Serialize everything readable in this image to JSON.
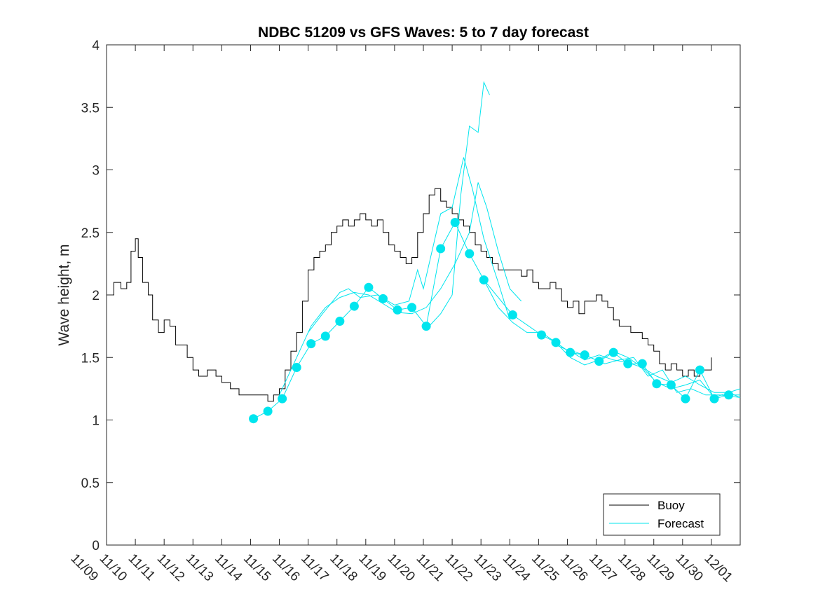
{
  "chart_data": {
    "type": "line",
    "title": "NDBC 51209 vs GFS Waves: 5 to 7 day forecast",
    "xlabel": "",
    "ylabel": "Wave height, m",
    "ylim": [
      0,
      4
    ],
    "yticks": [
      "0",
      "0.5",
      "1",
      "1.5",
      "2",
      "2.5",
      "3",
      "3.5",
      "4"
    ],
    "xlim": [
      0,
      22
    ],
    "xticks": [
      "11/09",
      "11/10",
      "11/11",
      "11/12",
      "11/13",
      "11/14",
      "11/15",
      "11/16",
      "11/17",
      "11/18",
      "11/19",
      "11/20",
      "11/21",
      "11/22",
      "11/23",
      "11/24",
      "11/25",
      "11/26",
      "11/27",
      "11/28",
      "11/29",
      "11/30",
      "12/01"
    ],
    "legend": {
      "position": "bottom-right",
      "entries": [
        {
          "label": "Buoy",
          "color": "#000000"
        },
        {
          "label": "Forecast",
          "color": "#00e5ee"
        }
      ]
    },
    "series": [
      {
        "name": "Buoy",
        "color": "#000000",
        "points": [
          [
            0,
            2.0
          ],
          [
            0.25,
            2.1
          ],
          [
            0.5,
            2.05
          ],
          [
            0.7,
            2.1
          ],
          [
            0.85,
            2.35
          ],
          [
            1.0,
            2.45
          ],
          [
            1.1,
            2.3
          ],
          [
            1.25,
            2.1
          ],
          [
            1.45,
            2.0
          ],
          [
            1.6,
            1.8
          ],
          [
            1.8,
            1.7
          ],
          [
            2.0,
            1.8
          ],
          [
            2.2,
            1.75
          ],
          [
            2.4,
            1.6
          ],
          [
            2.6,
            1.6
          ],
          [
            2.8,
            1.5
          ],
          [
            3.0,
            1.4
          ],
          [
            3.2,
            1.35
          ],
          [
            3.5,
            1.4
          ],
          [
            3.8,
            1.35
          ],
          [
            4.0,
            1.3
          ],
          [
            4.3,
            1.25
          ],
          [
            4.6,
            1.2
          ],
          [
            5.0,
            1.2
          ],
          [
            5.3,
            1.2
          ],
          [
            5.6,
            1.15
          ],
          [
            5.8,
            1.2
          ],
          [
            6.0,
            1.25
          ],
          [
            6.2,
            1.4
          ],
          [
            6.4,
            1.55
          ],
          [
            6.6,
            1.7
          ],
          [
            6.8,
            1.95
          ],
          [
            7.0,
            2.2
          ],
          [
            7.2,
            2.3
          ],
          [
            7.4,
            2.35
          ],
          [
            7.6,
            2.4
          ],
          [
            7.8,
            2.5
          ],
          [
            8.0,
            2.55
          ],
          [
            8.2,
            2.6
          ],
          [
            8.4,
            2.55
          ],
          [
            8.6,
            2.6
          ],
          [
            8.8,
            2.65
          ],
          [
            9.0,
            2.6
          ],
          [
            9.2,
            2.55
          ],
          [
            9.4,
            2.6
          ],
          [
            9.6,
            2.5
          ],
          [
            9.8,
            2.4
          ],
          [
            10.0,
            2.35
          ],
          [
            10.2,
            2.3
          ],
          [
            10.4,
            2.25
          ],
          [
            10.6,
            2.3
          ],
          [
            10.8,
            2.5
          ],
          [
            11.0,
            2.65
          ],
          [
            11.2,
            2.8
          ],
          [
            11.4,
            2.85
          ],
          [
            11.6,
            2.75
          ],
          [
            11.8,
            2.7
          ],
          [
            12.0,
            2.65
          ],
          [
            12.2,
            2.6
          ],
          [
            12.4,
            2.55
          ],
          [
            12.6,
            2.5
          ],
          [
            12.8,
            2.4
          ],
          [
            13.0,
            2.35
          ],
          [
            13.2,
            2.3
          ],
          [
            13.4,
            2.25
          ],
          [
            13.6,
            2.2
          ],
          [
            13.8,
            2.2
          ],
          [
            14.0,
            2.2
          ],
          [
            14.2,
            2.2
          ],
          [
            14.4,
            2.15
          ],
          [
            14.6,
            2.2
          ],
          [
            14.8,
            2.1
          ],
          [
            15.0,
            2.05
          ],
          [
            15.2,
            2.05
          ],
          [
            15.4,
            2.1
          ],
          [
            15.6,
            2.05
          ],
          [
            15.8,
            1.95
          ],
          [
            16.0,
            1.9
          ],
          [
            16.2,
            1.95
          ],
          [
            16.4,
            1.85
          ],
          [
            16.6,
            1.95
          ],
          [
            16.8,
            1.95
          ],
          [
            17.0,
            2.0
          ],
          [
            17.2,
            1.95
          ],
          [
            17.4,
            1.9
          ],
          [
            17.6,
            1.8
          ],
          [
            17.8,
            1.75
          ],
          [
            18.0,
            1.75
          ],
          [
            18.2,
            1.7
          ],
          [
            18.4,
            1.7
          ],
          [
            18.6,
            1.65
          ],
          [
            18.8,
            1.6
          ],
          [
            19.0,
            1.55
          ],
          [
            19.2,
            1.45
          ],
          [
            19.4,
            1.4
          ],
          [
            19.6,
            1.45
          ],
          [
            19.8,
            1.4
          ],
          [
            20.0,
            1.35
          ],
          [
            20.2,
            1.4
          ],
          [
            20.4,
            1.35
          ],
          [
            20.6,
            1.4
          ],
          [
            20.8,
            1.4
          ],
          [
            21.0,
            1.5
          ]
        ]
      },
      {
        "name": "Forecast",
        "color": "#00e5ee",
        "markers": [
          [
            5.1,
            1.01
          ],
          [
            5.6,
            1.07
          ],
          [
            6.1,
            1.17
          ],
          [
            6.6,
            1.42
          ],
          [
            7.1,
            1.61
          ],
          [
            7.6,
            1.67
          ],
          [
            8.1,
            1.79
          ],
          [
            8.6,
            1.91
          ],
          [
            9.1,
            2.06
          ],
          [
            9.6,
            1.97
          ],
          [
            10.1,
            1.88
          ],
          [
            10.6,
            1.9
          ],
          [
            11.1,
            1.75
          ],
          [
            11.6,
            2.37
          ],
          [
            12.1,
            2.58
          ],
          [
            12.6,
            2.33
          ],
          [
            13.1,
            2.12
          ],
          [
            14.1,
            1.84
          ],
          [
            15.1,
            1.68
          ],
          [
            15.6,
            1.62
          ],
          [
            16.1,
            1.54
          ],
          [
            16.6,
            1.52
          ],
          [
            17.1,
            1.47
          ],
          [
            17.6,
            1.54
          ],
          [
            18.1,
            1.45
          ],
          [
            18.6,
            1.45
          ],
          [
            19.1,
            1.29
          ],
          [
            19.6,
            1.28
          ],
          [
            20.1,
            1.17
          ],
          [
            20.6,
            1.4
          ],
          [
            21.1,
            1.17
          ],
          [
            21.6,
            1.2
          ]
        ],
        "runs": [
          [
            [
              5.1,
              1.01
            ],
            [
              5.6,
              1.07
            ],
            [
              6.1,
              1.17
            ],
            [
              6.6,
              1.42
            ],
            [
              7.1,
              1.61
            ],
            [
              7.6,
              1.67
            ],
            [
              8.1,
              1.79
            ],
            [
              8.6,
              1.91
            ],
            [
              9.1,
              2.06
            ],
            [
              9.6,
              1.97
            ],
            [
              10.1,
              1.88
            ],
            [
              10.6,
              1.9
            ],
            [
              11.1,
              1.75
            ],
            [
              11.6,
              2.37
            ],
            [
              12.1,
              2.58
            ],
            [
              12.6,
              2.33
            ],
            [
              13.1,
              2.12
            ],
            [
              14.1,
              1.84
            ],
            [
              15.1,
              1.68
            ],
            [
              15.6,
              1.62
            ],
            [
              16.1,
              1.54
            ],
            [
              16.6,
              1.52
            ],
            [
              17.1,
              1.47
            ],
            [
              17.6,
              1.54
            ],
            [
              18.1,
              1.45
            ],
            [
              18.6,
              1.45
            ],
            [
              19.1,
              1.29
            ],
            [
              19.6,
              1.28
            ],
            [
              20.1,
              1.17
            ],
            [
              20.6,
              1.4
            ],
            [
              21.1,
              1.17
            ],
            [
              21.6,
              1.2
            ],
            [
              22.0,
              1.2
            ]
          ],
          [
            [
              6.0,
              1.2
            ],
            [
              6.6,
              1.5
            ],
            [
              7.1,
              1.75
            ],
            [
              7.6,
              1.9
            ],
            [
              8.1,
              1.98
            ],
            [
              8.6,
              2.02
            ],
            [
              9.1,
              2.0
            ],
            [
              9.6,
              1.93
            ],
            [
              10.1,
              1.86
            ],
            [
              10.6,
              1.85
            ],
            [
              11.1,
              1.9
            ],
            [
              11.6,
              2.05
            ],
            [
              12.1,
              2.25
            ],
            [
              12.6,
              2.5
            ],
            [
              12.9,
              2.9
            ],
            [
              13.2,
              2.7
            ],
            [
              13.6,
              2.35
            ],
            [
              14.0,
              2.05
            ],
            [
              14.4,
              1.95
            ]
          ],
          [
            [
              7.0,
              1.7
            ],
            [
              7.5,
              1.85
            ],
            [
              8.1,
              2.02
            ],
            [
              8.4,
              2.05
            ],
            [
              8.8,
              1.98
            ],
            [
              9.4,
              2.0
            ],
            [
              10.0,
              1.92
            ],
            [
              10.5,
              1.95
            ],
            [
              10.8,
              2.2
            ],
            [
              11.0,
              2.05
            ],
            [
              11.6,
              2.65
            ],
            [
              12.0,
              2.7
            ],
            [
              12.4,
              3.1
            ],
            [
              12.7,
              2.85
            ],
            [
              13.1,
              2.45
            ],
            [
              13.6,
              2.1
            ],
            [
              14.0,
              1.8
            ]
          ],
          [
            [
              11.2,
              1.75
            ],
            [
              11.6,
              1.85
            ],
            [
              12.0,
              2.0
            ],
            [
              12.3,
              2.8
            ],
            [
              12.6,
              3.35
            ],
            [
              12.9,
              3.3
            ],
            [
              13.1,
              3.7
            ],
            [
              13.3,
              3.6
            ]
          ],
          [
            [
              13.1,
              2.12
            ],
            [
              13.6,
              1.9
            ],
            [
              14.1,
              1.78
            ],
            [
              14.6,
              1.7
            ],
            [
              15.1,
              1.7
            ],
            [
              15.6,
              1.62
            ],
            [
              16.1,
              1.5
            ],
            [
              16.6,
              1.44
            ],
            [
              17.1,
              1.48
            ],
            [
              17.6,
              1.55
            ],
            [
              18.1,
              1.5
            ],
            [
              18.6,
              1.42
            ],
            [
              19.1,
              1.35
            ],
            [
              19.6,
              1.3
            ],
            [
              20.1,
              1.35
            ],
            [
              20.6,
              1.28
            ],
            [
              21.1,
              1.22
            ],
            [
              21.6,
              1.22
            ],
            [
              22.0,
              1.25
            ]
          ],
          [
            [
              15.6,
              1.6
            ],
            [
              16.1,
              1.55
            ],
            [
              16.6,
              1.48
            ],
            [
              17.1,
              1.52
            ],
            [
              17.6,
              1.48
            ],
            [
              18.1,
              1.46
            ],
            [
              18.6,
              1.42
            ],
            [
              19.1,
              1.3
            ],
            [
              19.6,
              1.25
            ],
            [
              20.1,
              1.28
            ],
            [
              20.6,
              1.32
            ],
            [
              21.1,
              1.18
            ],
            [
              21.6,
              1.22
            ],
            [
              22.0,
              1.18
            ]
          ],
          [
            [
              16.2,
              1.55
            ],
            [
              16.8,
              1.5
            ],
            [
              17.3,
              1.45
            ],
            [
              17.8,
              1.48
            ],
            [
              18.3,
              1.5
            ],
            [
              18.8,
              1.35
            ],
            [
              19.3,
              1.4
            ],
            [
              19.8,
              1.22
            ],
            [
              20.3,
              1.25
            ],
            [
              20.8,
              1.2
            ],
            [
              21.3,
              1.2
            ],
            [
              22.0,
              1.18
            ]
          ]
        ]
      }
    ]
  }
}
